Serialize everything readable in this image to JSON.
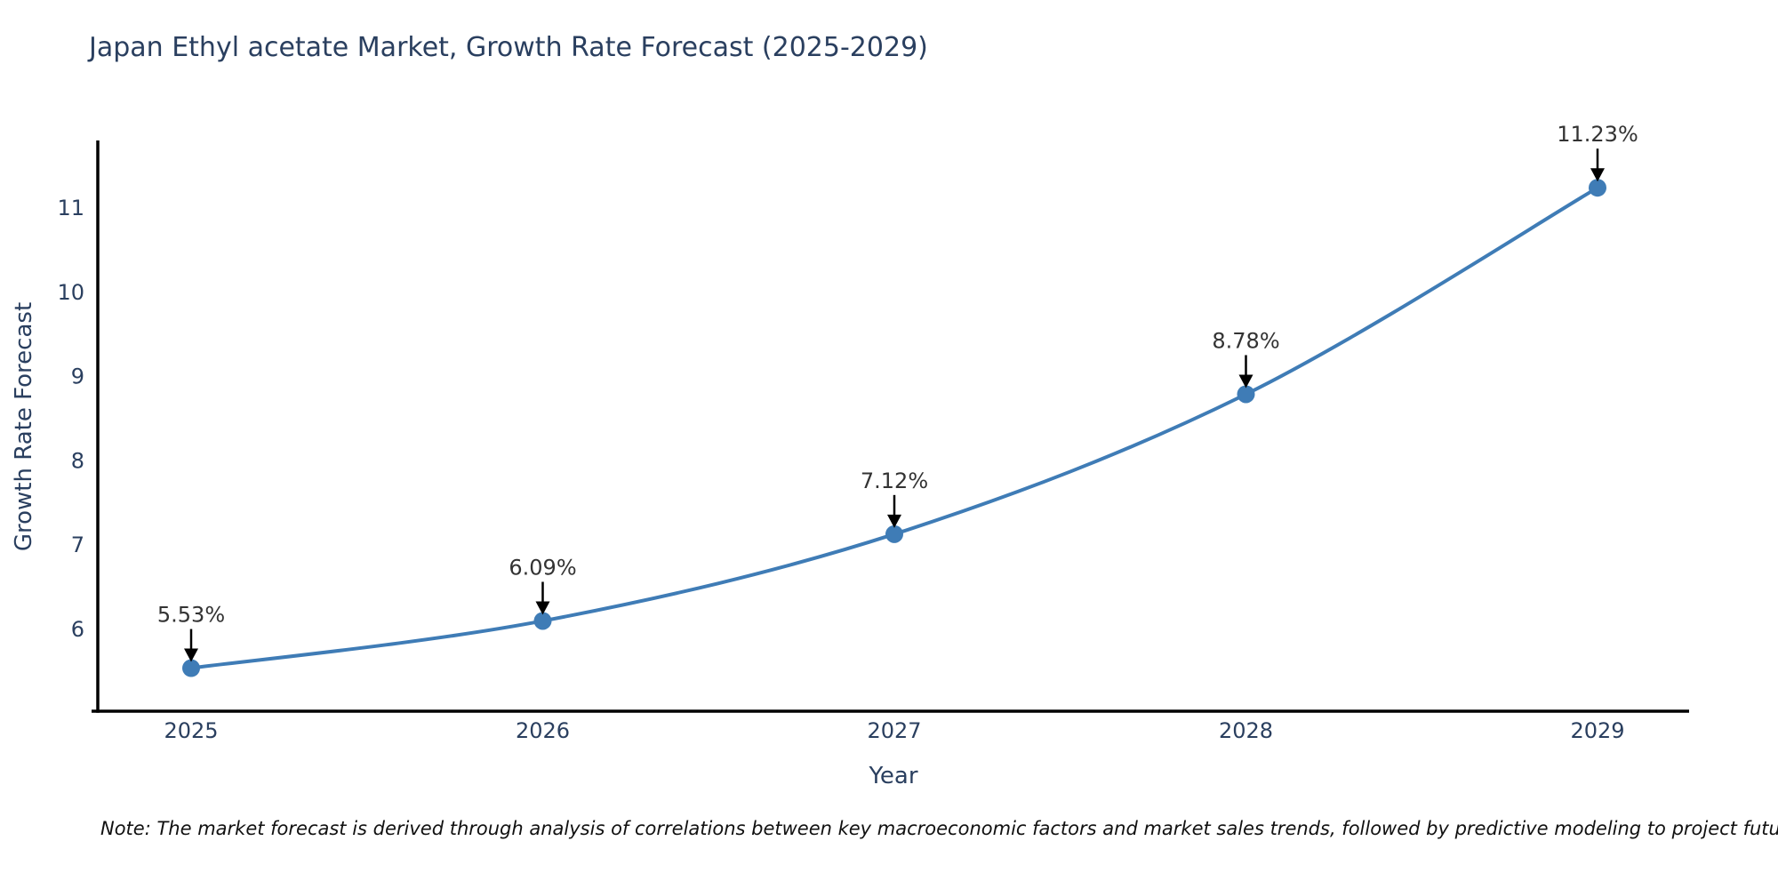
{
  "chart_data": {
    "type": "line",
    "line_shape": "spline",
    "title": "Japan Ethyl acetate Market, Growth Rate Forecast (2025-2029)",
    "xlabel": "Year",
    "ylabel": "Growth Rate Forecast",
    "categories": [
      "2025",
      "2026",
      "2027",
      "2028",
      "2029"
    ],
    "series": [
      {
        "name": "Growth Rate Forecast",
        "values": [
          5.53,
          6.09,
          7.12,
          8.78,
          11.23
        ]
      }
    ],
    "point_labels": [
      "5.53%",
      "6.09%",
      "7.12%",
      "8.78%",
      "11.23%"
    ],
    "yticks": [
      6,
      7,
      8,
      9,
      10,
      11
    ],
    "ylim": [
      5.0,
      11.8
    ],
    "grid": false,
    "legend": "none",
    "annotations_style": "label-with-down-arrow",
    "colors": {
      "line": "#3f7cb6",
      "marker": "#3f7cb6",
      "title_text": "#2a3f5f",
      "axis_text": "#2a3f5f",
      "annotation_text": "#333333",
      "annotation_arrow": "#000000",
      "axis_line": "#000000",
      "background": "#ffffff"
    }
  },
  "footnote": "Note: The market forecast is derived through analysis of correlations between key macroeconomic factors and market sales trends, followed by predictive modeling to project future sales"
}
